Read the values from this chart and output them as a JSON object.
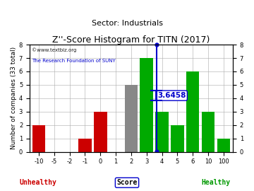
{
  "title": "Z''-Score Histogram for TITN (2017)",
  "subtitle": "Sector: Industrials",
  "xlabel": "Score",
  "ylabel": "Number of companies (33 total)",
  "watermark1": "©www.textbiz.org",
  "watermark2": "The Research Foundation of SUNY",
  "score_value": 3.6458,
  "score_label": "3.6458",
  "unhealthy_label": "Unhealthy",
  "healthy_label": "Healthy",
  "bin_labels": [
    "-10",
    "-5",
    "-2",
    "-1",
    "0",
    "1",
    "2",
    "3",
    "4",
    "5",
    "6",
    "10",
    "100"
  ],
  "counts": [
    2,
    0,
    0,
    1,
    3,
    0,
    5,
    7,
    3,
    2,
    6,
    3,
    1
  ],
  "bar_colors": [
    "#cc0000",
    "#cc0000",
    "#cc0000",
    "#cc0000",
    "#cc0000",
    "#cc0000",
    "#888888",
    "#00aa00",
    "#00aa00",
    "#00aa00",
    "#00aa00",
    "#00aa00",
    "#00aa00"
  ],
  "line_color": "#0000cc",
  "ylim": [
    0,
    8
  ],
  "yticks": [
    0,
    1,
    2,
    3,
    4,
    5,
    6,
    7,
    8
  ],
  "bg_color": "#ffffff",
  "grid_color": "#aaaaaa",
  "title_fontsize": 9,
  "subtitle_fontsize": 8,
  "label_fontsize": 6.5,
  "tick_fontsize": 6,
  "annotation_fontsize": 7.5
}
